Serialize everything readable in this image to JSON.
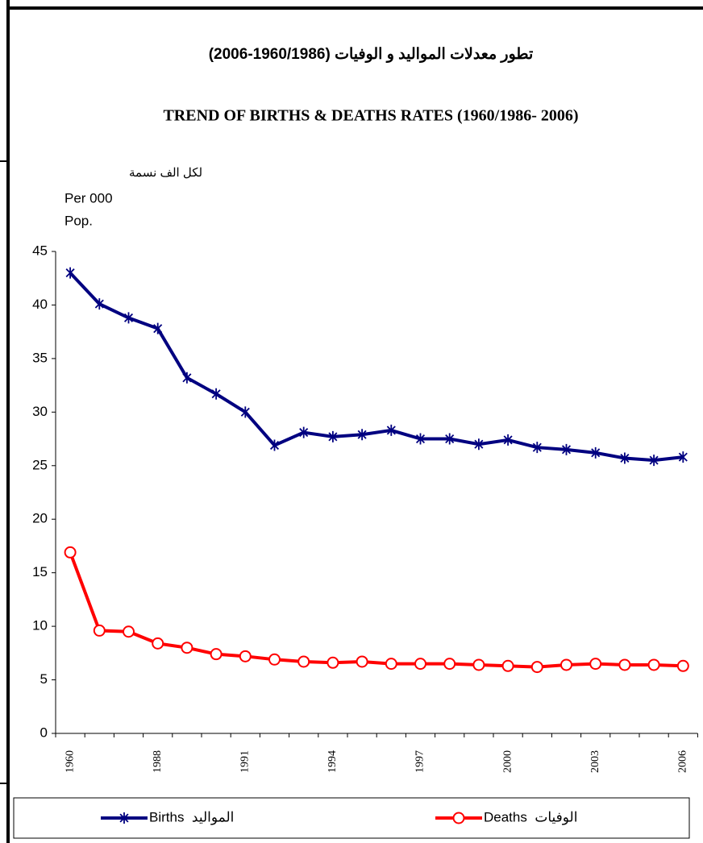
{
  "chart_data": {
    "type": "line",
    "title": "تطور معدلات المواليد و الوفيات (1960/1986-2006)",
    "subtitle": "TREND OF BIRTHS & DEATHS RATES (1960/1986- 2006)",
    "y_label": [
      "لكل الف نسمة",
      "Per 000",
      "Pop."
    ],
    "categories": [
      "1960",
      null,
      null,
      "1988",
      null,
      null,
      "1991",
      null,
      null,
      "1994",
      null,
      null,
      "1997",
      null,
      null,
      "2000",
      null,
      null,
      "2003",
      null,
      null,
      "2006"
    ],
    "series": [
      {
        "name": "Births  المواليد",
        "color": "#000080",
        "marker": "star",
        "values": [
          43,
          40.1,
          38.8,
          37.8,
          33.2,
          31.7,
          30,
          26.9,
          28.1,
          27.7,
          27.9,
          28.3,
          27.5,
          27.5,
          27.0,
          27.4,
          26.7,
          26.5,
          26.2,
          25.7,
          25.5,
          25.8
        ]
      },
      {
        "name": "Deaths  الوفيات",
        "color": "#ff0000",
        "marker": "circle",
        "values": [
          16.9,
          9.6,
          9.5,
          8.4,
          8.0,
          7.4,
          7.2,
          6.9,
          6.7,
          6.6,
          6.7,
          6.5,
          6.5,
          6.5,
          6.4,
          6.3,
          6.2,
          6.4,
          6.5,
          6.4,
          6.4,
          6.3
        ]
      }
    ],
    "ylim": [
      0,
      45
    ],
    "yticks": [
      0,
      5,
      10,
      15,
      20,
      25,
      30,
      35,
      40,
      45
    ],
    "legend": "bottom"
  }
}
